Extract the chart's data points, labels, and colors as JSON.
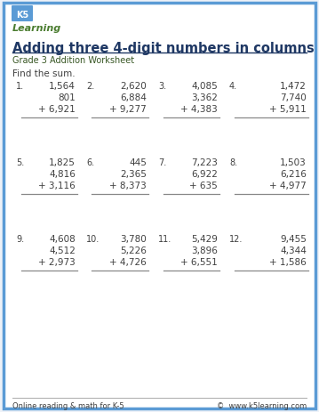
{
  "title": "Adding three 4-digit numbers in columns",
  "subtitle": "Grade 3 Addition Worksheet",
  "instruction": "Find the sum.",
  "bg_color": "#eef2f8",
  "border_color": "#5b9bd5",
  "title_color": "#1f3864",
  "subtitle_color": "#375623",
  "text_color": "#404040",
  "number_color": "#404040",
  "footer_left": "Online reading & math for K-5",
  "footer_right": "©  www.k5learning.com",
  "problems": [
    {
      "num": "1.",
      "n1": "1,564",
      "n2": "801",
      "n3": "6,921"
    },
    {
      "num": "2.",
      "n1": "2,620",
      "n2": "6,884",
      "n3": "9,277"
    },
    {
      "num": "3.",
      "n1": "4,085",
      "n2": "3,362",
      "n3": "4,383"
    },
    {
      "num": "4.",
      "n1": "1,472",
      "n2": "7,740",
      "n3": "5,911"
    },
    {
      "num": "5.",
      "n1": "1,825",
      "n2": "4,816",
      "n3": "3,116"
    },
    {
      "num": "6.",
      "n1": "445",
      "n2": "2,365",
      "n3": "8,373"
    },
    {
      "num": "7.",
      "n1": "7,223",
      "n2": "6,922",
      "n3": "635"
    },
    {
      "num": "8.",
      "n1": "1,503",
      "n2": "6,216",
      "n3": "4,977"
    },
    {
      "num": "9.",
      "n1": "4,608",
      "n2": "4,512",
      "n3": "2,973"
    },
    {
      "num": "10.",
      "n1": "3,780",
      "n2": "5,226",
      "n3": "4,726"
    },
    {
      "num": "11.",
      "n1": "5,429",
      "n2": "3,896",
      "n3": "6,551"
    },
    {
      "num": "12.",
      "n1": "9,455",
      "n2": "4,344",
      "n3": "1,586"
    }
  ]
}
